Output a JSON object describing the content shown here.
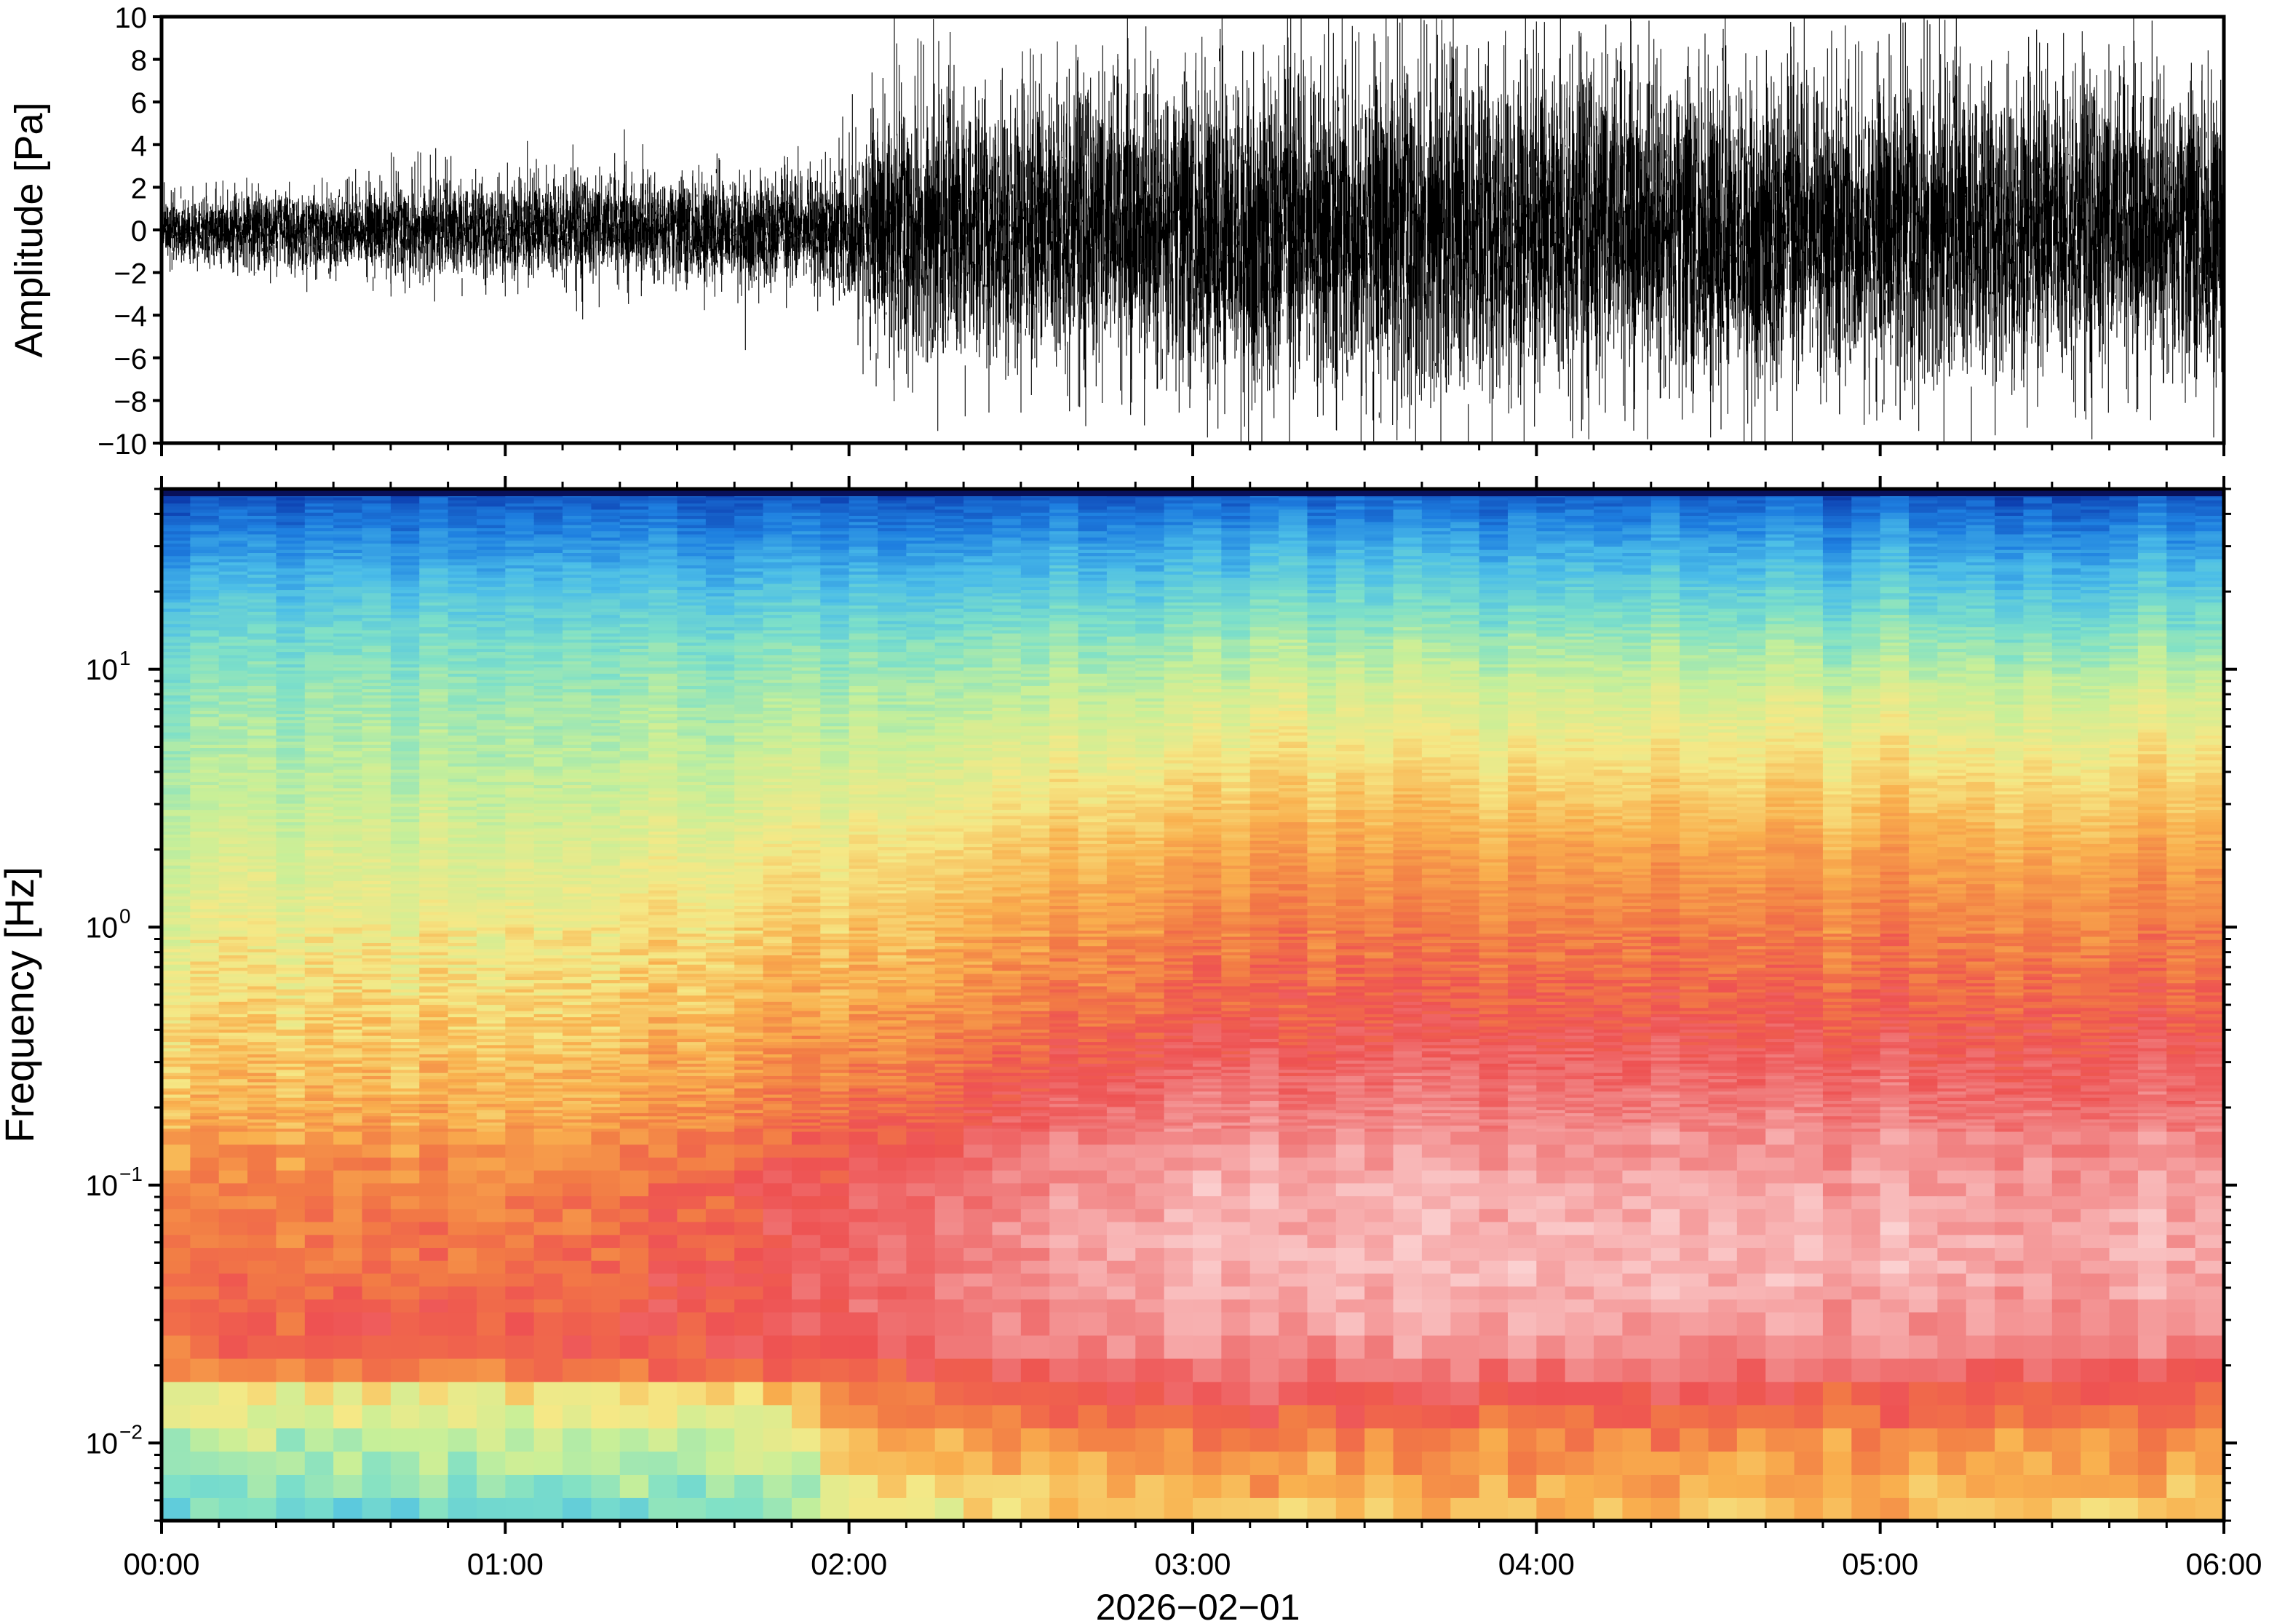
{
  "chart_data": [
    {
      "type": "line",
      "panel": "waveform",
      "ylabel": "Amplitude [Pa]",
      "ylim": [
        -10,
        10
      ],
      "yticks": [
        -10,
        -8,
        -6,
        -4,
        -2,
        0,
        2,
        4,
        6,
        8,
        10
      ],
      "ytick_labels": [
        "−10",
        "−8",
        "−6",
        "−4",
        "−2",
        "0",
        "2",
        "4",
        "6",
        "8",
        "10"
      ],
      "xlim_hours": [
        0,
        6
      ],
      "line_color": "#000000",
      "envelope": {
        "time_hours": [
          0.0,
          0.5,
          1.0,
          1.5,
          1.8,
          1.95,
          2.1,
          2.5,
          3.0,
          3.5,
          4.0,
          4.5,
          5.0,
          5.5,
          6.0
        ],
        "typical_abs_amplitude": [
          1.0,
          1.2,
          1.4,
          1.5,
          1.6,
          1.8,
          3.5,
          4.0,
          4.5,
          5.0,
          4.8,
          4.6,
          4.5,
          4.3,
          4.2
        ],
        "peak_abs_amplitude": [
          2.0,
          3.0,
          4.5,
          4.0,
          3.5,
          6.0,
          9.0,
          9.0,
          10.0,
          10.0,
          10.0,
          10.0,
          10.0,
          10.0,
          10.0
        ]
      }
    },
    {
      "type": "heatmap",
      "panel": "spectrogram",
      "ylabel": "Frequency [Hz]",
      "yscale": "log",
      "ylim_hz": [
        0.005,
        50
      ],
      "ytick_values": [
        0.01,
        0.1,
        1,
        10
      ],
      "ytick_base": "10",
      "ytick_exponents": [
        "−2",
        "−1",
        "0",
        "1"
      ],
      "xlim_hours": [
        0,
        6
      ],
      "xticks": [
        "00:00",
        "01:00",
        "02:00",
        "03:00",
        "04:00",
        "05:00",
        "06:00"
      ],
      "xlabel": "2026−02−01",
      "colormap_stops": [
        "#08105a",
        "#0d3fb0",
        "#1e7fe0",
        "#4bbde8",
        "#7ee0c8",
        "#c8ef98",
        "#f5e886",
        "#f9b04e",
        "#f27c45",
        "#ee5252",
        "#f07a7a",
        "#f6a6a6",
        "#fbd0d0"
      ],
      "log_freq_band_profile": {
        "log10_freq": [
          -2.3,
          -2.0,
          -1.8,
          -1.6,
          -1.3,
          -1.0,
          -0.7,
          -0.3,
          0.0,
          0.3,
          0.6,
          0.9,
          1.1,
          1.3,
          1.5,
          1.7
        ],
        "level_at_0h": [
          0.42,
          0.52,
          0.62,
          0.72,
          0.68,
          0.65,
          0.58,
          0.52,
          0.48,
          0.44,
          0.4,
          0.36,
          0.32,
          0.26,
          0.18,
          0.1
        ],
        "level_at_3h": [
          0.55,
          0.65,
          0.78,
          0.9,
          0.96,
          0.94,
          0.85,
          0.72,
          0.66,
          0.6,
          0.52,
          0.44,
          0.38,
          0.3,
          0.22,
          0.12
        ],
        "level_at_6h": [
          0.55,
          0.63,
          0.73,
          0.86,
          0.93,
          0.9,
          0.82,
          0.72,
          0.66,
          0.6,
          0.52,
          0.44,
          0.36,
          0.28,
          0.2,
          0.1
        ]
      }
    }
  ]
}
